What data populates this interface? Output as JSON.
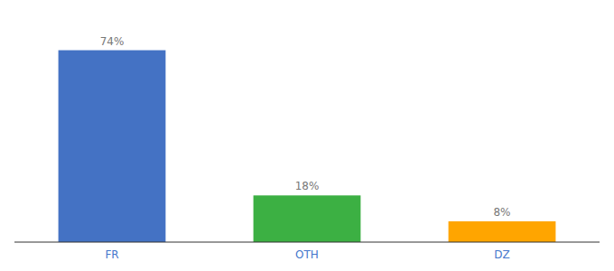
{
  "chart_data": {
    "type": "bar",
    "categories": [
      "FR",
      "OTH",
      "DZ"
    ],
    "values": [
      74,
      18,
      8
    ],
    "value_labels": [
      "74%",
      "18%",
      "8%"
    ],
    "colors": [
      "#4472C4",
      "#3CB043",
      "#FFA500"
    ],
    "ylim": [
      0,
      85
    ],
    "data_labels": true,
    "tick_labels": "x",
    "grid": false
  }
}
